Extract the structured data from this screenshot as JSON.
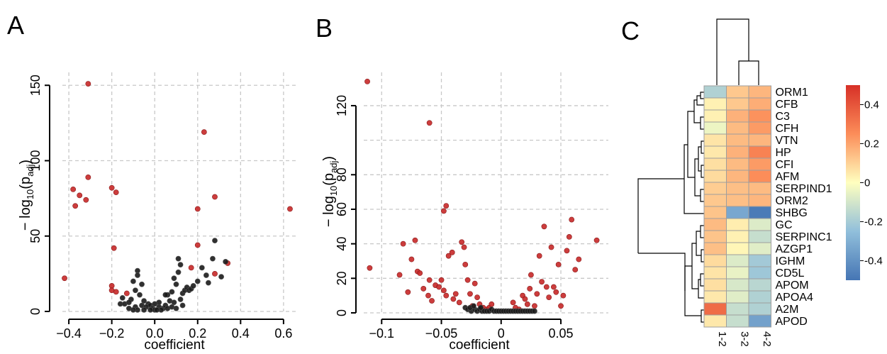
{
  "colors": {
    "significant": "#c62828",
    "nonsignificant": "#1a1a1a",
    "grid": "#c8c8c8",
    "heat_cell_border": "#9e9e9e",
    "dendrogram": "#000000"
  },
  "chart_data": [
    {
      "panel_label": "A",
      "type": "scatter",
      "xlabel": "coefficient",
      "ylabel_text": "− log",
      "ylabel_sub": "10",
      "ylabel_paren": "(p",
      "ylabel_adj": "adj",
      "ylabel_close": ")",
      "xlim": [
        -0.43,
        0.64
      ],
      "ylim": [
        0,
        152
      ],
      "xticks": [
        -0.4,
        -0.2,
        0.0,
        0.2,
        0.4,
        0.6
      ],
      "xtick_labels": [
        "−0.4",
        "−0.2",
        "0.0",
        "0.2",
        "0.4",
        "0.6"
      ],
      "yticks": [
        0,
        50,
        100,
        150
      ],
      "ytick_labels": [
        "0",
        "50",
        "100",
        "150"
      ],
      "grid": true,
      "series": [
        {
          "kind": "significant",
          "points": [
            [
              -0.31,
              151
            ],
            [
              0.23,
              119
            ],
            [
              -0.31,
              89
            ],
            [
              -0.38,
              81
            ],
            [
              -0.35,
              77
            ],
            [
              -0.2,
              82
            ],
            [
              -0.18,
              79
            ],
            [
              -0.32,
              74
            ],
            [
              -0.37,
              70
            ],
            [
              0.28,
              76
            ],
            [
              0.63,
              68
            ],
            [
              0.2,
              68
            ],
            [
              -0.42,
              22
            ],
            [
              -0.19,
              42
            ],
            [
              0.2,
              44
            ],
            [
              0.17,
              29
            ],
            [
              0.34,
              32
            ],
            [
              0.28,
              25
            ],
            [
              -0.2,
              17
            ],
            [
              -0.2,
              14
            ],
            [
              -0.18,
              13
            ],
            [
              -0.13,
              12
            ]
          ]
        },
        {
          "kind": "nonsignificant",
          "points": [
            [
              -0.08,
              27
            ],
            [
              -0.08,
              24
            ],
            [
              -0.1,
              20
            ],
            [
              -0.06,
              18
            ],
            [
              -0.09,
              14
            ],
            [
              -0.07,
              11
            ],
            [
              -0.15,
              9
            ],
            [
              -0.16,
              5
            ],
            [
              -0.14,
              5
            ],
            [
              -0.11,
              8
            ],
            [
              -0.05,
              7
            ],
            [
              -0.03,
              5
            ],
            [
              -0.02,
              4
            ],
            [
              -0.06,
              4
            ],
            [
              -0.09,
              3
            ],
            [
              -0.12,
              2
            ],
            [
              -0.04,
              3
            ],
            [
              -0.01,
              2
            ],
            [
              0.0,
              1
            ],
            [
              0.02,
              3
            ],
            [
              0.04,
              2
            ],
            [
              0.05,
              4
            ],
            [
              0.06,
              2
            ],
            [
              0.08,
              3
            ],
            [
              0.1,
              2
            ],
            [
              0.03,
              1
            ],
            [
              -0.05,
              1
            ],
            [
              -0.08,
              1
            ],
            [
              -0.1,
              1
            ],
            [
              0.07,
              7
            ],
            [
              0.06,
              11
            ],
            [
              0.08,
              13
            ],
            [
              0.1,
              18
            ],
            [
              0.09,
              22
            ],
            [
              0.11,
              26
            ],
            [
              0.12,
              31
            ],
            [
              0.11,
              35
            ],
            [
              0.13,
              12
            ],
            [
              0.14,
              14
            ],
            [
              0.15,
              16
            ],
            [
              0.16,
              14
            ],
            [
              0.17,
              15
            ],
            [
              0.18,
              17
            ],
            [
              0.2,
              20
            ],
            [
              0.22,
              29
            ],
            [
              0.24,
              24
            ],
            [
              0.25,
              19
            ],
            [
              0.27,
              35
            ],
            [
              0.28,
              47
            ],
            [
              0.31,
              23
            ],
            [
              0.33,
              33
            ],
            [
              0.05,
              11
            ],
            [
              0.02,
              6
            ],
            [
              0.09,
              6
            ],
            [
              0.12,
              8
            ],
            [
              -0.02,
              1
            ],
            [
              0.01,
              1
            ],
            [
              0.13,
              4
            ],
            [
              -0.12,
              6
            ],
            [
              0.0,
              5
            ]
          ]
        }
      ]
    },
    {
      "panel_label": "B",
      "type": "scatter",
      "xlabel": "coefficient",
      "ylabel_text": "− log",
      "ylabel_sub": "10",
      "ylabel_paren": "(p",
      "ylabel_adj": "adj",
      "ylabel_close": ")",
      "xlim": [
        -0.115,
        0.085
      ],
      "ylim": [
        0,
        136
      ],
      "xticks": [
        -0.1,
        -0.05,
        0.0,
        0.05
      ],
      "xtick_labels": [
        "−0.1",
        "−0.05",
        "0",
        "0.05"
      ],
      "yticks": [
        0,
        20,
        40,
        60,
        80,
        120
      ],
      "ytick_labels": [
        "0",
        "20",
        "40",
        "60",
        "80",
        "120"
      ],
      "grid_y": [
        0,
        20,
        40,
        60,
        80,
        100,
        120
      ],
      "grid": true,
      "series": [
        {
          "kind": "significant",
          "points": [
            [
              -0.112,
              134
            ],
            [
              -0.06,
              110
            ],
            [
              -0.046,
              62
            ],
            [
              -0.048,
              59
            ],
            [
              -0.11,
              26
            ],
            [
              -0.085,
              22
            ],
            [
              -0.082,
              40
            ],
            [
              -0.075,
              31
            ],
            [
              -0.072,
              42
            ],
            [
              -0.07,
              24
            ],
            [
              -0.068,
              23
            ],
            [
              -0.065,
              14
            ],
            [
              -0.078,
              12
            ],
            [
              -0.061,
              10
            ],
            [
              -0.058,
              7
            ],
            [
              -0.055,
              16
            ],
            [
              -0.052,
              15
            ],
            [
              -0.05,
              19
            ],
            [
              -0.048,
              13
            ],
            [
              -0.046,
              10
            ],
            [
              -0.044,
              33
            ],
            [
              -0.041,
              35
            ],
            [
              -0.04,
              8
            ],
            [
              -0.035,
              6
            ],
            [
              -0.033,
              41
            ],
            [
              -0.031,
              38
            ],
            [
              -0.03,
              28
            ],
            [
              -0.028,
              19
            ],
            [
              -0.026,
              11
            ],
            [
              -0.024,
              4
            ],
            [
              -0.022,
              17
            ],
            [
              -0.02,
              9
            ],
            [
              -0.018,
              5
            ],
            [
              -0.015,
              3
            ],
            [
              -0.012,
              2
            ],
            [
              -0.01,
              3
            ],
            [
              0.012,
              3
            ],
            [
              0.018,
              10
            ],
            [
              0.02,
              8
            ],
            [
              0.022,
              5
            ],
            [
              0.024,
              14
            ],
            [
              0.025,
              22
            ],
            [
              0.028,
              4
            ],
            [
              0.03,
              11
            ],
            [
              0.032,
              33
            ],
            [
              0.034,
              18
            ],
            [
              0.036,
              50
            ],
            [
              0.038,
              15
            ],
            [
              0.04,
              9
            ],
            [
              0.042,
              38
            ],
            [
              0.044,
              15
            ],
            [
              0.046,
              12
            ],
            [
              0.048,
              28
            ],
            [
              0.05,
              4
            ],
            [
              0.052,
              10
            ],
            [
              0.055,
              36
            ],
            [
              0.057,
              44
            ],
            [
              0.059,
              54
            ],
            [
              0.062,
              25
            ],
            [
              0.065,
              31
            ],
            [
              0.08,
              42
            ],
            [
              -0.038,
              11
            ],
            [
              -0.06,
              19
            ],
            [
              0.01,
              6
            ],
            [
              -0.008,
              5
            ],
            [
              0.015,
              2
            ]
          ]
        },
        {
          "kind": "nonsignificant",
          "points": [
            [
              -0.03,
              3
            ],
            [
              -0.028,
              2
            ],
            [
              -0.025,
              1
            ],
            [
              -0.022,
              2
            ],
            [
              -0.02,
              1
            ],
            [
              -0.018,
              2
            ],
            [
              -0.016,
              1
            ],
            [
              -0.014,
              1
            ],
            [
              -0.012,
              1
            ],
            [
              -0.01,
              1
            ],
            [
              -0.008,
              2
            ],
            [
              -0.006,
              1
            ],
            [
              -0.004,
              1
            ],
            [
              -0.002,
              1
            ],
            [
              0.0,
              1
            ],
            [
              0.002,
              1
            ],
            [
              0.004,
              1
            ],
            [
              0.006,
              1
            ],
            [
              0.008,
              1
            ],
            [
              0.01,
              1
            ],
            [
              0.012,
              1
            ],
            [
              0.014,
              1
            ],
            [
              0.016,
              1
            ],
            [
              0.018,
              1
            ],
            [
              0.02,
              1
            ],
            [
              0.022,
              1
            ],
            [
              0.024,
              1
            ],
            [
              0.026,
              1
            ],
            [
              0.028,
              1
            ],
            [
              -0.026,
              3
            ],
            [
              -0.023,
              4
            ],
            [
              -0.017,
              3
            ]
          ]
        }
      ]
    },
    {
      "panel_label": "C",
      "type": "heatmap",
      "rows": [
        "ORM1",
        "CFB",
        "C3",
        "CFH",
        "VTN",
        "HP",
        "CFI",
        "AFM",
        "SERPIND1",
        "ORM2",
        "SHBG",
        "GC",
        "SERPINC1",
        "AZGP1",
        "IGHM",
        "CD5L",
        "APOM",
        "APOA4",
        "A2M",
        "APOD"
      ],
      "columns": [
        "1-2",
        "3-2",
        "4-2"
      ],
      "values": [
        [
          -0.18,
          0.12,
          0.16
        ],
        [
          0.03,
          0.12,
          0.18
        ],
        [
          0.03,
          0.17,
          0.24
        ],
        [
          -0.04,
          0.15,
          0.22
        ],
        [
          0.06,
          0.15,
          0.16
        ],
        [
          0.05,
          0.17,
          0.28
        ],
        [
          0.07,
          0.15,
          0.22
        ],
        [
          0.08,
          0.16,
          0.25
        ],
        [
          0.11,
          0.14,
          0.15
        ],
        [
          0.12,
          0.14,
          0.16
        ],
        [
          0.13,
          -0.33,
          -0.48
        ],
        [
          0.15,
          0.04,
          -0.08
        ],
        [
          0.13,
          0.03,
          -0.13
        ],
        [
          0.14,
          0.02,
          -0.07
        ],
        [
          0.08,
          -0.08,
          -0.21
        ],
        [
          0.06,
          -0.05,
          -0.22
        ],
        [
          0.07,
          -0.09,
          -0.16
        ],
        [
          0.05,
          -0.07,
          -0.18
        ],
        [
          0.34,
          -0.13,
          -0.18
        ],
        [
          0.05,
          -0.13,
          -0.35
        ]
      ],
      "colorbar": {
        "min": -0.5,
        "max": 0.5,
        "ticks": [
          0.4,
          0.2,
          0,
          -0.2,
          -0.4
        ],
        "tick_labels": [
          "0.4",
          "0.2",
          "0",
          "-0.2",
          "-0.4"
        ],
        "colors": [
          "#4575b4",
          "#91bfdb",
          "#ffffbf",
          "#fc8d59",
          "#d73027"
        ]
      }
    }
  ]
}
